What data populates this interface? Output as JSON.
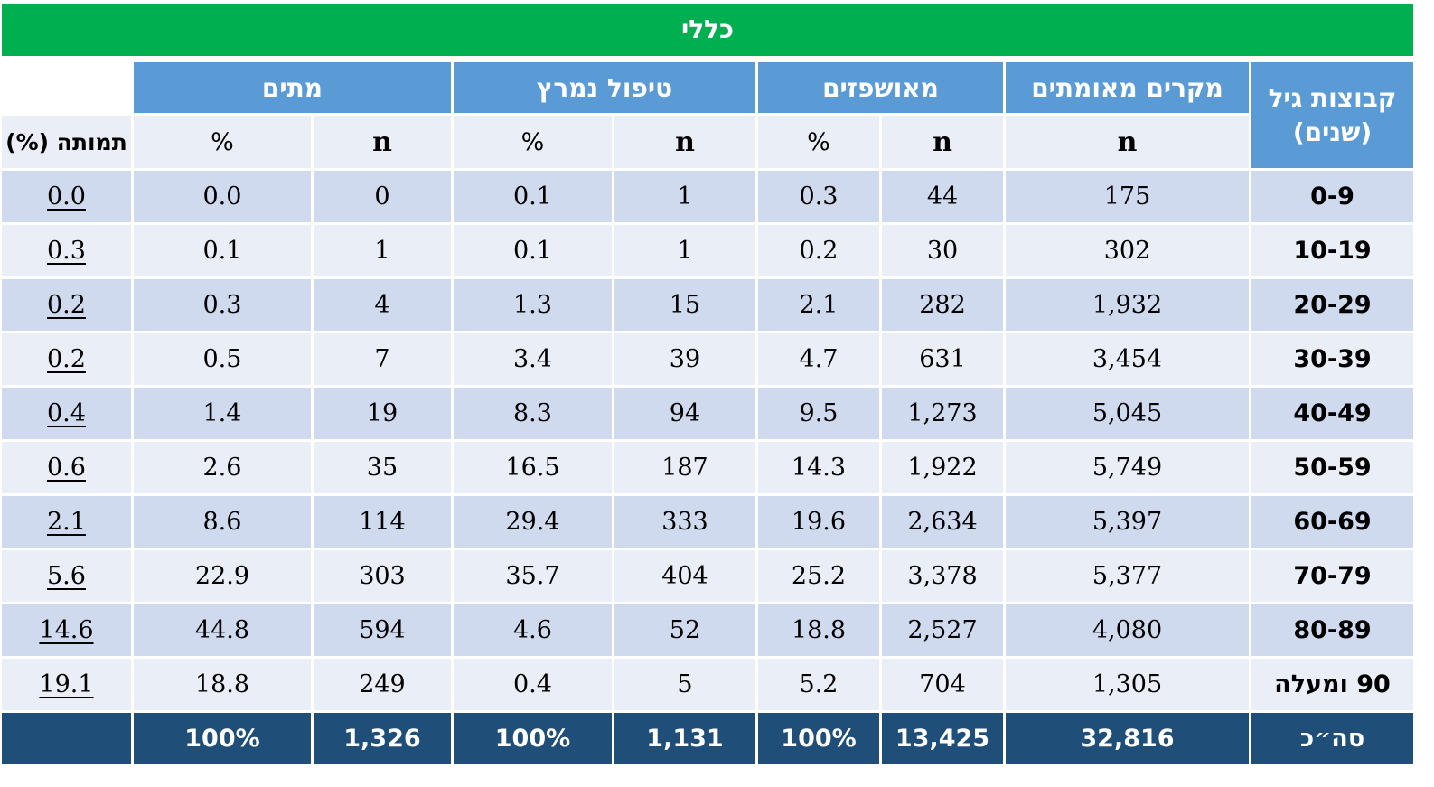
{
  "title": "כללי",
  "group_headers": {
    "age": "קבוצות גיל (שנים)",
    "confirmed": "מקרים מאומתים",
    "hospitalized": "מאושפזים",
    "severe": "טיפול נמרץ",
    "deaths": "מתים"
  },
  "sub_headers": {
    "confirmed_n": "n",
    "hosp_n": "n",
    "hosp_pct": "%",
    "severe_n": "n",
    "severe_pct": "%",
    "deaths_n": "n",
    "deaths_pct": "%",
    "mortality": "תמותה (%)"
  },
  "rows": [
    {
      "age": "0-9",
      "confirmed_n": "175",
      "hosp_n": "44",
      "hosp_pct": "0.3",
      "severe_n": "1",
      "severe_pct": "0.1",
      "deaths_n": "0",
      "deaths_pct": "0.0",
      "mortality": "0.0"
    },
    {
      "age": "10-19",
      "confirmed_n": "302",
      "hosp_n": "30",
      "hosp_pct": "0.2",
      "severe_n": "1",
      "severe_pct": "0.1",
      "deaths_n": "1",
      "deaths_pct": "0.1",
      "mortality": "0.3"
    },
    {
      "age": "20-29",
      "confirmed_n": "1,932",
      "hosp_n": "282",
      "hosp_pct": "2.1",
      "severe_n": "15",
      "severe_pct": "1.3",
      "deaths_n": "4",
      "deaths_pct": "0.3",
      "mortality": "0.2"
    },
    {
      "age": "30-39",
      "confirmed_n": "3,454",
      "hosp_n": "631",
      "hosp_pct": "4.7",
      "severe_n": "39",
      "severe_pct": "3.4",
      "deaths_n": "7",
      "deaths_pct": "0.5",
      "mortality": "0.2"
    },
    {
      "age": "40-49",
      "confirmed_n": "5,045",
      "hosp_n": "1,273",
      "hosp_pct": "9.5",
      "severe_n": "94",
      "severe_pct": "8.3",
      "deaths_n": "19",
      "deaths_pct": "1.4",
      "mortality": "0.4"
    },
    {
      "age": "50-59",
      "confirmed_n": "5,749",
      "hosp_n": "1,922",
      "hosp_pct": "14.3",
      "severe_n": "187",
      "severe_pct": "16.5",
      "deaths_n": "35",
      "deaths_pct": "2.6",
      "mortality": "0.6"
    },
    {
      "age": "60-69",
      "confirmed_n": "5,397",
      "hosp_n": "2,634",
      "hosp_pct": "19.6",
      "severe_n": "333",
      "severe_pct": "29.4",
      "deaths_n": "114",
      "deaths_pct": "8.6",
      "mortality": "2.1"
    },
    {
      "age": "70-79",
      "confirmed_n": "5,377",
      "hosp_n": "3,378",
      "hosp_pct": "25.2",
      "severe_n": "404",
      "severe_pct": "35.7",
      "deaths_n": "303",
      "deaths_pct": "22.9",
      "mortality": "5.6"
    },
    {
      "age": "80-89",
      "confirmed_n": "4,080",
      "hosp_n": "2,527",
      "hosp_pct": "18.8",
      "severe_n": "52",
      "severe_pct": "4.6",
      "deaths_n": "594",
      "deaths_pct": "44.8",
      "mortality": "14.6"
    },
    {
      "age": "90 ומעלה",
      "confirmed_n": "1,305",
      "hosp_n": "704",
      "hosp_pct": "5.2",
      "severe_n": "5",
      "severe_pct": "0.4",
      "deaths_n": "249",
      "deaths_pct": "18.8",
      "mortality": "19.1"
    }
  ],
  "total": {
    "label": "סה״כ",
    "confirmed_n": "32,816",
    "hosp_n": "13,425",
    "hosp_pct": "100%",
    "severe_n": "1,131",
    "severe_pct": "100%",
    "deaths_n": "1,326",
    "deaths_pct": "100%",
    "mortality": ""
  },
  "colors": {
    "title_bg": "#00b050",
    "header_bg": "#5b9bd5",
    "row_dark": "#cfdaee",
    "row_light": "#e9eef7",
    "total_bg": "#1f4e79"
  }
}
